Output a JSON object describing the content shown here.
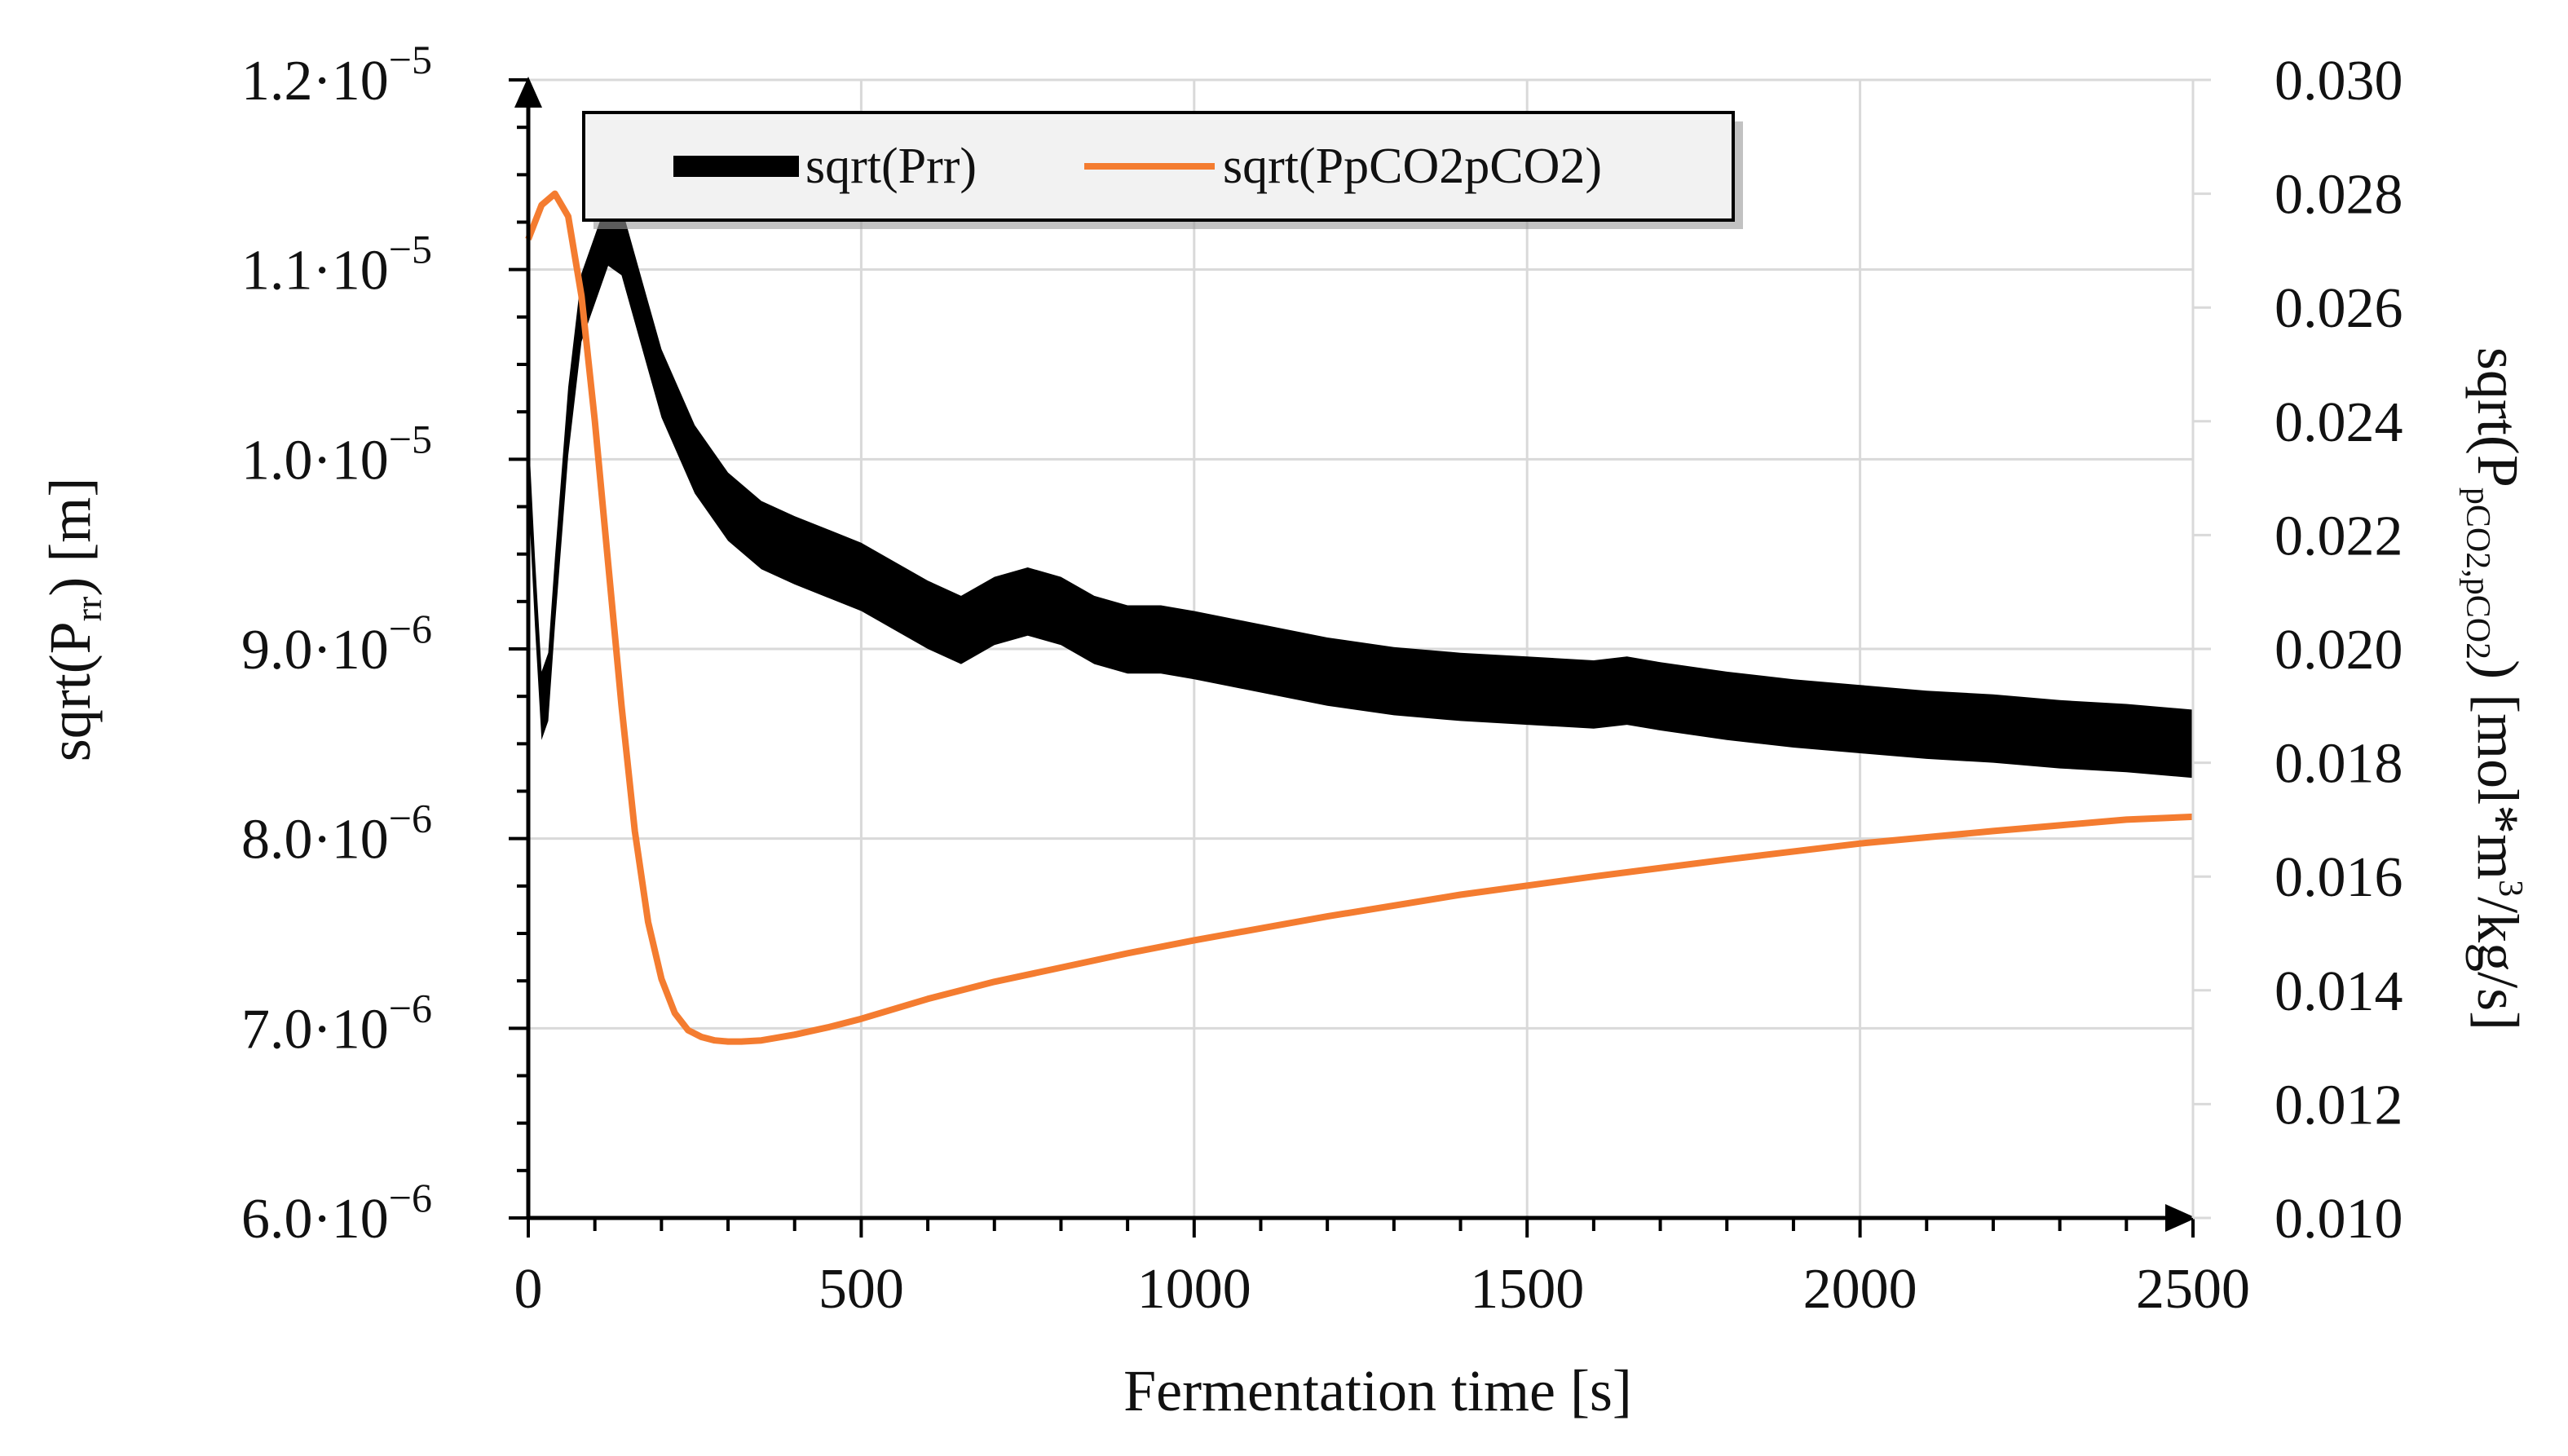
{
  "chart_data": {
    "type": "line",
    "title": "",
    "xlabel": "Fermentation time [s]",
    "ylabel_left": "sqrt(P_rr) [m]",
    "ylabel_right": "sqrt(P_pCO2,pCO2) [mol*m3/kg/s]",
    "left_axis_label": {
      "base": "sqrt(P",
      "sub": "rr",
      "tail": ") [m]"
    },
    "right_axis_label": {
      "base": "sqrt(P",
      "sub": "pCO2,pCO2",
      "tail": ") [mol*m",
      "sup": "3",
      "end": "/kg/s]"
    },
    "xlim": [
      0,
      2500
    ],
    "ylim_left": [
      6e-06,
      1.2e-05
    ],
    "ylim_right": [
      0.01,
      0.03
    ],
    "grid": true,
    "legend_position": "top",
    "x_ticks": [
      {
        "value": 0,
        "label": "0"
      },
      {
        "value": 500,
        "label": "500"
      },
      {
        "value": 1000,
        "label": "1000"
      },
      {
        "value": 1500,
        "label": "1500"
      },
      {
        "value": 2000,
        "label": "2000"
      },
      {
        "value": 2500,
        "label": "2500"
      }
    ],
    "y_left_ticks": [
      {
        "value": 6e-06,
        "mant": "6.0·10",
        "exp": "−6"
      },
      {
        "value": 7e-06,
        "mant": "7.0·10",
        "exp": "−6"
      },
      {
        "value": 8e-06,
        "mant": "8.0·10",
        "exp": "−6"
      },
      {
        "value": 9e-06,
        "mant": "9.0·10",
        "exp": "−6"
      },
      {
        "value": 1e-05,
        "mant": "1.0·10",
        "exp": "−5"
      },
      {
        "value": 1.1e-05,
        "mant": "1.1·10",
        "exp": "−5"
      },
      {
        "value": 1.2e-05,
        "mant": "1.2·10",
        "exp": "−5"
      }
    ],
    "y_right_ticks": [
      {
        "value": 0.01,
        "label": "0.010"
      },
      {
        "value": 0.012,
        "label": "0.012"
      },
      {
        "value": 0.014,
        "label": "0.014"
      },
      {
        "value": 0.016,
        "label": "0.016"
      },
      {
        "value": 0.018,
        "label": "0.018"
      },
      {
        "value": 0.02,
        "label": "0.020"
      },
      {
        "value": 0.022,
        "label": "0.022"
      },
      {
        "value": 0.024,
        "label": "0.024"
      },
      {
        "value": 0.026,
        "label": "0.026"
      },
      {
        "value": 0.028,
        "label": "0.028"
      },
      {
        "value": 0.03,
        "label": "0.030"
      }
    ],
    "series": [
      {
        "name": "sqrt(Prr)",
        "axis": "left",
        "color": "#000000",
        "band_half_width": 1.8e-07,
        "x": [
          0,
          10,
          20,
          30,
          40,
          60,
          80,
          100,
          120,
          140,
          160,
          180,
          200,
          250,
          300,
          350,
          400,
          450,
          500,
          550,
          600,
          650,
          700,
          750,
          800,
          850,
          900,
          950,
          1000,
          1100,
          1200,
          1300,
          1400,
          1500,
          1600,
          1650,
          1700,
          1800,
          1900,
          2000,
          2100,
          2200,
          2300,
          2400,
          2500
        ],
        "y": [
          1e-05,
          9.3e-06,
          8.7e-06,
          8.8e-06,
          9.3e-06,
          1.02e-05,
          1.08e-05,
          1.1e-05,
          1.12e-05,
          1.115e-05,
          1.09e-05,
          1.065e-05,
          1.04e-05,
          1e-05,
          9.75e-06,
          9.6e-06,
          9.52e-06,
          9.45e-06,
          9.38e-06,
          9.28e-06,
          9.18e-06,
          9.1e-06,
          9.2e-06,
          9.25e-06,
          9.2e-06,
          9.1e-06,
          9.05e-06,
          9.05e-06,
          9.02e-06,
          8.95e-06,
          8.88e-06,
          8.83e-06,
          8.8e-06,
          8.78e-06,
          8.76e-06,
          8.78e-06,
          8.75e-06,
          8.7e-06,
          8.66e-06,
          8.63e-06,
          8.6e-06,
          8.58e-06,
          8.55e-06,
          8.53e-06,
          8.5e-06
        ]
      },
      {
        "name": "sqrt(PpCO2pCO2)",
        "axis": "right",
        "color": "#f47c30",
        "x": [
          0,
          20,
          40,
          60,
          80,
          100,
          120,
          140,
          160,
          180,
          200,
          220,
          240,
          260,
          280,
          300,
          320,
          350,
          400,
          450,
          500,
          600,
          700,
          800,
          900,
          1000,
          1200,
          1400,
          1600,
          1800,
          2000,
          2200,
          2400,
          2500
        ],
        "y": [
          0.0272,
          0.0278,
          0.028,
          0.0276,
          0.0262,
          0.024,
          0.0215,
          0.019,
          0.0168,
          0.0152,
          0.0142,
          0.0136,
          0.0133,
          0.01318,
          0.01312,
          0.0131,
          0.0131,
          0.01312,
          0.01322,
          0.01335,
          0.0135,
          0.01385,
          0.01415,
          0.0144,
          0.01465,
          0.01488,
          0.0153,
          0.01568,
          0.016,
          0.0163,
          0.01658,
          0.0168,
          0.017,
          0.01705
        ]
      }
    ]
  }
}
